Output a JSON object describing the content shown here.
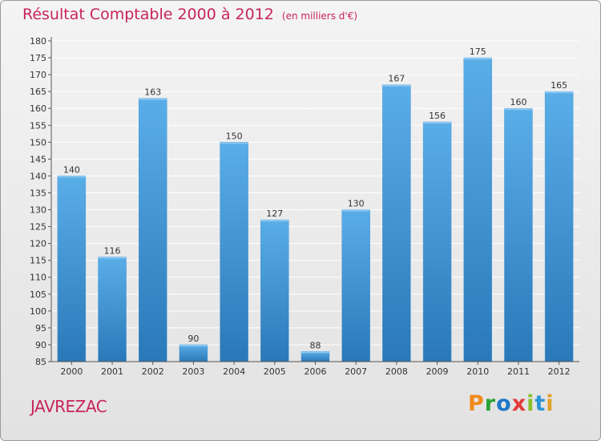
{
  "header": {
    "title": "Résultat Comptable 2000 à 2012",
    "subtitle": "(en milliers d'€)"
  },
  "footer": {
    "location": "JAVREZAC",
    "logo_text": "Proxiti"
  },
  "colors": {
    "title": "#c8245e",
    "bar_top": "#5aaee8",
    "bar_bottom": "#2a78b8",
    "grid": "#ffffff"
  },
  "chart_data": {
    "type": "bar",
    "categories": [
      "2000",
      "2001",
      "2002",
      "2003",
      "2004",
      "2005",
      "2006",
      "2007",
      "2008",
      "2009",
      "2010",
      "2011",
      "2012"
    ],
    "values": [
      140,
      116,
      163,
      90,
      150,
      127,
      88,
      130,
      167,
      156,
      175,
      160,
      165
    ],
    "ylim": [
      85,
      180
    ],
    "ytick_step": 5,
    "grid": true,
    "data_labels": true
  }
}
